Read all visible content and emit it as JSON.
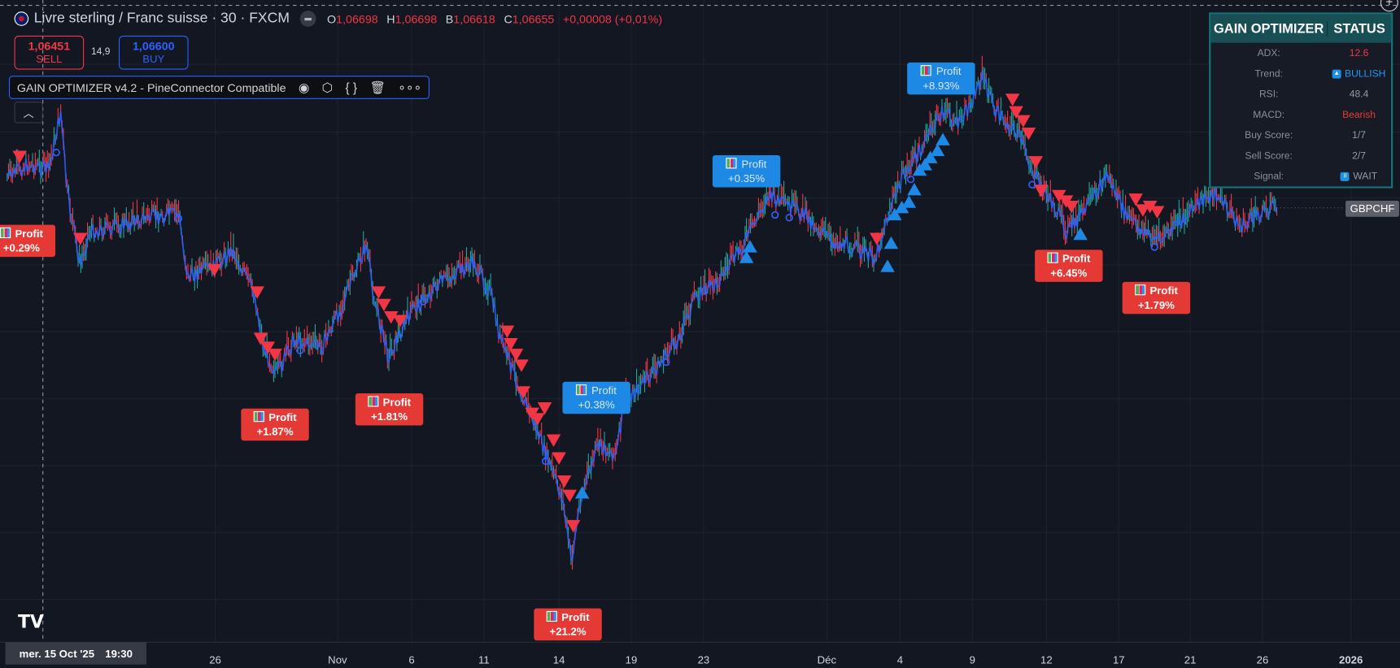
{
  "header": {
    "title": "Livre sterling / Franc suisse · 30 · FXCM",
    "ohlc": [
      {
        "k": "O",
        "v": "1,06698"
      },
      {
        "k": "H",
        "v": "1,06698"
      },
      {
        "k": "B",
        "v": "1,06618"
      },
      {
        "k": "C",
        "v": "1,06655"
      }
    ],
    "change": "+0,00008 (+0,01%)"
  },
  "trade": {
    "sell_price": "1,06451",
    "sell_label": "SELL",
    "spread": "14,9",
    "buy_price": "1,06600",
    "buy_label": "BUY"
  },
  "indicator": {
    "name": "GAIN OPTIMIZER v4.2 - PineConnector Compatible",
    "icons": [
      "eye-icon",
      "settings-icon",
      "source-code-icon",
      "delete-icon",
      "more-icon"
    ]
  },
  "table": {
    "h1": "GAIN OPTIMIZER",
    "h2": "STATUS",
    "rows": [
      {
        "label": "ADX:",
        "value": "12.6",
        "color": "#f23645"
      },
      {
        "label": "Trend:",
        "value": "BULLISH",
        "color": "#2196f3",
        "badge": "▲"
      },
      {
        "label": "RSI:",
        "value": "48.4",
        "color": "#9598a1"
      },
      {
        "label": "MACD:",
        "value": "Bearish",
        "color": "#e53935"
      },
      {
        "label": "Buy Score:",
        "value": "1/7",
        "color": "#9598a1"
      },
      {
        "label": "Sell Score:",
        "value": "2/7",
        "color": "#9598a1"
      },
      {
        "label": "Signal:",
        "value": "WAIT",
        "color": "#9598a1",
        "badge": "II"
      }
    ]
  },
  "symbol_label": "GBPCHF",
  "profits": [
    {
      "label": "Profit",
      "value": "+0.29%",
      "color": "red"
    },
    {
      "label": "Profit",
      "value": "+1.87%",
      "color": "red"
    },
    {
      "label": "Profit",
      "value": "+1.81%",
      "color": "red"
    },
    {
      "label": "Profit",
      "value": "+21.2%",
      "color": "red"
    },
    {
      "label": "Profit",
      "value": "+0.38%",
      "color": "blue"
    },
    {
      "label": "Profit",
      "value": "+0.35%",
      "color": "blue"
    },
    {
      "label": "Profit",
      "value": "+8.93%",
      "color": "blue"
    },
    {
      "label": "Profit",
      "value": "+6.45%",
      "color": "red"
    },
    {
      "label": "Profit",
      "value": "+1.79%",
      "color": "red"
    }
  ],
  "time_axis": [
    "26",
    "Nov",
    "6",
    "11",
    "14",
    "19",
    "23",
    "Déc",
    "4",
    "9",
    "12",
    "17",
    "21",
    "26",
    "2026"
  ],
  "crosshair": {
    "date": "mer. 15 Oct '25",
    "time": "19:30"
  },
  "colors": {
    "up": "#26a69a",
    "down": "#f23645",
    "line": "#2962ff",
    "sell_marker": "#f23645",
    "buy_marker": "#1e88e5"
  }
}
